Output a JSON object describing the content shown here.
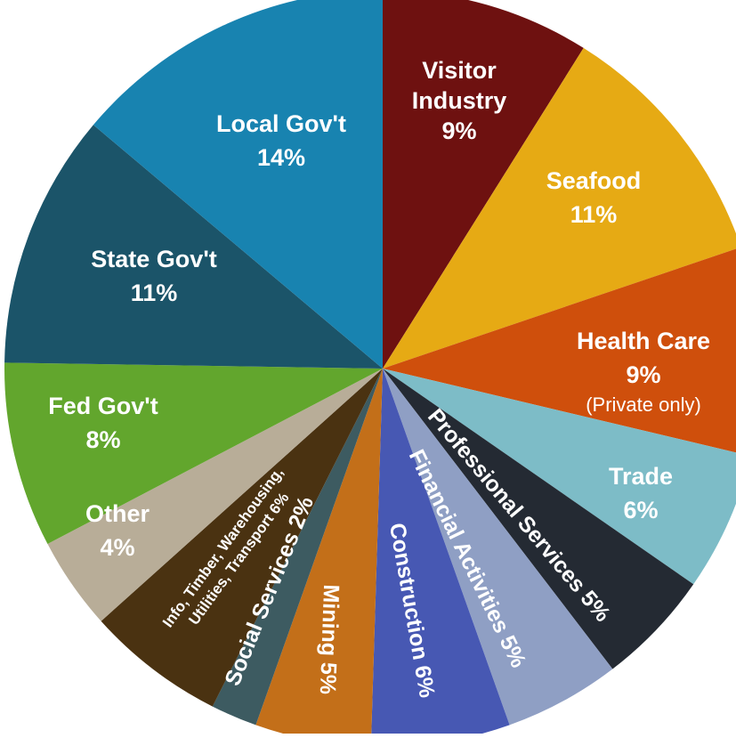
{
  "chart_data": {
    "type": "pie",
    "title": "",
    "slices": [
      {
        "key": "visitor",
        "label_lines": [
          "Visitor",
          "Industry",
          "9%"
        ],
        "value": 9,
        "color": "#6e1110"
      },
      {
        "key": "seafood",
        "label_lines": [
          "Seafood",
          "11%"
        ],
        "value": 11,
        "color": "#e6aa14"
      },
      {
        "key": "health",
        "label_lines": [
          "Health Care",
          "9%"
        ],
        "note": "(Private only)",
        "value": 9,
        "color": "#cf4f0c"
      },
      {
        "key": "trade",
        "label_lines": [
          "Trade",
          "6%"
        ],
        "value": 6,
        "color": "#7dbcc7"
      },
      {
        "key": "professional",
        "label_lines": [
          "Professional Services 5%"
        ],
        "value": 5,
        "color": "#242a33"
      },
      {
        "key": "financial",
        "label_lines": [
          "Financial Activities 5%"
        ],
        "value": 5,
        "color": "#8f9fc4"
      },
      {
        "key": "construction",
        "label_lines": [
          "Construction 6%"
        ],
        "value": 6,
        "color": "#4758b3"
      },
      {
        "key": "mining",
        "label_lines": [
          "Mining 5%"
        ],
        "value": 5,
        "color": "#c36f19"
      },
      {
        "key": "social",
        "label_lines": [
          "Social Services 2%"
        ],
        "value": 2,
        "color": "#3d5b61"
      },
      {
        "key": "info",
        "label_lines": [
          "Info, Timber, Warehousing,",
          "Utilities, Transport 6%"
        ],
        "value": 6,
        "color": "#4a3211"
      },
      {
        "key": "other",
        "label_lines": [
          "Other",
          "4%"
        ],
        "value": 4,
        "color": "#b8ad98"
      },
      {
        "key": "fedgov",
        "label_lines": [
          "Fed Gov't",
          "8%"
        ],
        "value": 8,
        "color": "#62a62d"
      },
      {
        "key": "stategov",
        "label_lines": [
          "State Gov't",
          "11%"
        ],
        "value": 11,
        "color": "#1b5469"
      },
      {
        "key": "localgov",
        "label_lines": [
          "Local Gov't",
          "14%"
        ],
        "value": 14,
        "color": "#1883b0"
      }
    ]
  }
}
